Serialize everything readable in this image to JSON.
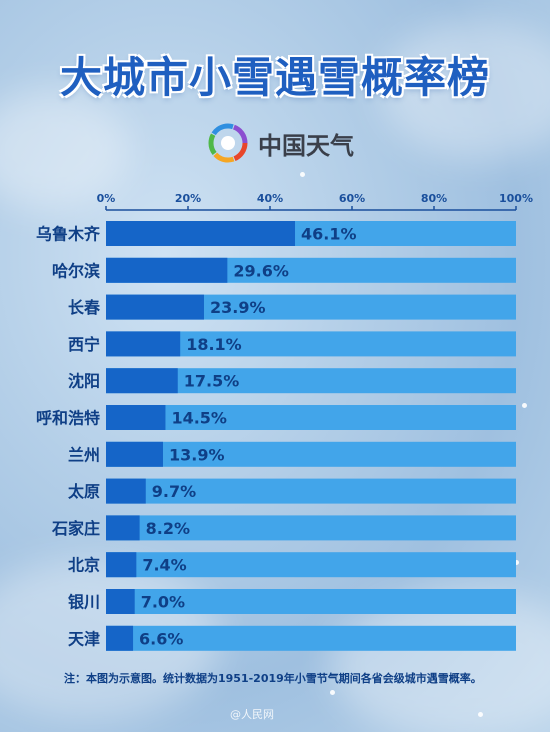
{
  "title": "大城市小雪遇雪概率榜",
  "brand": {
    "name": "中国天气",
    "logo_colors": [
      "#e8462a",
      "#f5a623",
      "#4fb848",
      "#2f8fe0",
      "#8b4fd0"
    ]
  },
  "footnote": "注：本图为示意图。统计数据为1951-2019年小雪节气期间各省会级城市遇雪概率。",
  "watermark": "@人民网",
  "colors": {
    "bar_fill": "#1565c8",
    "bar_track": "#42a5ea",
    "accent": "#1f5fc0"
  },
  "chart_data": {
    "type": "bar",
    "orientation": "horizontal",
    "categories": [
      "乌鲁木齐",
      "哈尔滨",
      "长春",
      "西宁",
      "沈阳",
      "呼和浩特",
      "兰州",
      "太原",
      "石家庄",
      "北京",
      "银川",
      "天津"
    ],
    "values": [
      46.1,
      29.6,
      23.9,
      18.1,
      17.5,
      14.5,
      13.9,
      9.7,
      8.2,
      7.4,
      7.0,
      6.6
    ],
    "value_labels": [
      "46.1%",
      "29.6%",
      "23.9%",
      "18.1%",
      "17.5%",
      "14.5%",
      "13.9%",
      "9.7%",
      "8.2%",
      "7.4%",
      "7.0%",
      "6.6%"
    ],
    "xlim": [
      0,
      100
    ],
    "x_ticks": [
      "0%",
      "20%",
      "40%",
      "60%",
      "80%",
      "100%"
    ],
    "x_tick_values": [
      0,
      20,
      40,
      60,
      80,
      100
    ],
    "axis_position": "top",
    "legend": "none"
  }
}
